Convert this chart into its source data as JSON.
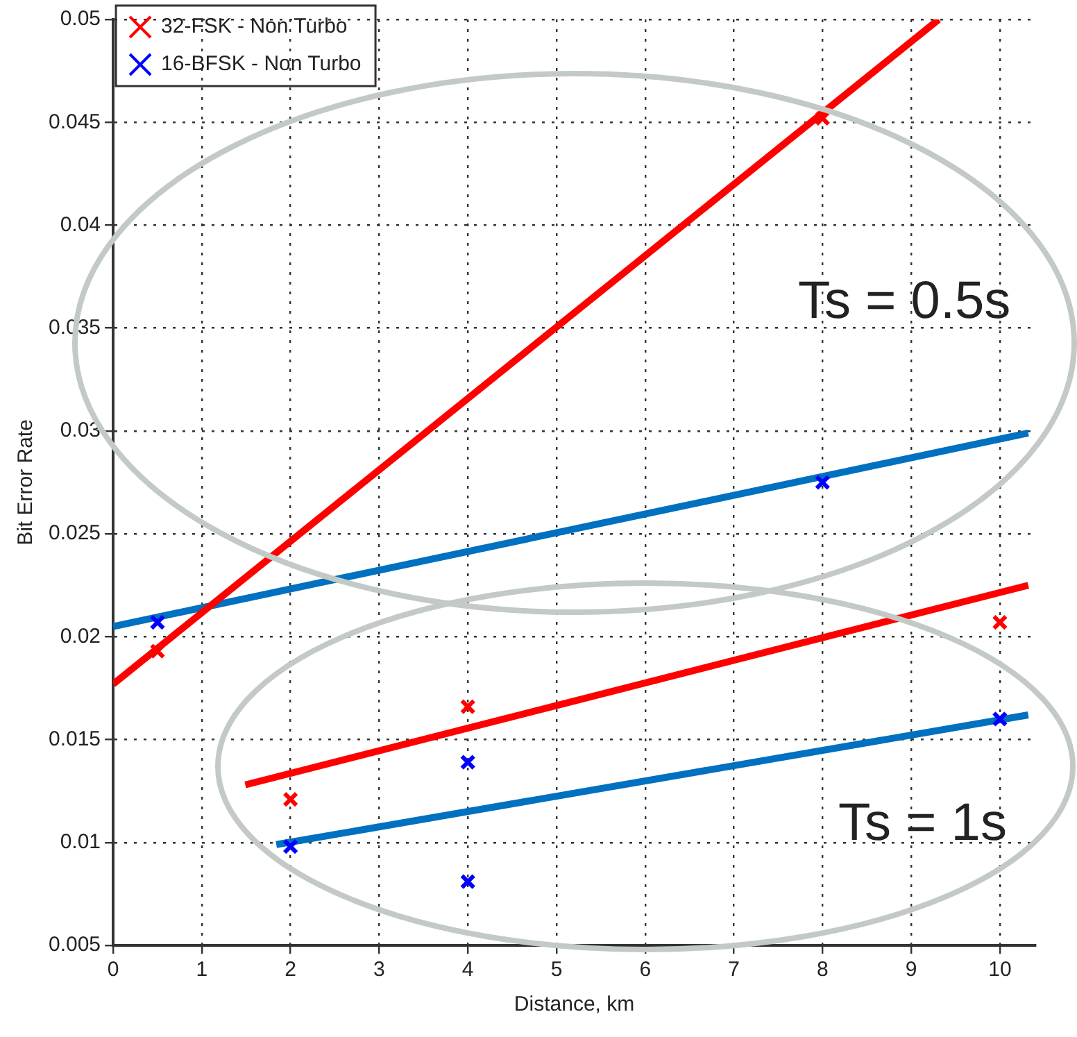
{
  "chart_data": {
    "type": "scatter",
    "xlabel": "Distance, km",
    "ylabel": "Bit Error Rate",
    "xlim": [
      0,
      10.4
    ],
    "xticks": [
      0,
      1,
      2,
      3,
      4,
      5,
      6,
      7,
      8,
      9,
      10
    ],
    "ylim": [
      0.005,
      0.05
    ],
    "yticks": [
      0.005,
      0.01,
      0.015,
      0.02,
      0.025,
      0.03,
      0.035,
      0.04,
      0.045,
      0.05
    ],
    "grid": true,
    "legend": "top left",
    "marker": "cross",
    "annotations": [
      "Ts = 0.5s",
      "Ts = 1s"
    ],
    "series": [
      {
        "name": "32-FSK - Non Turbo",
        "color": "#ff0000",
        "x": [
          0.5,
          8,
          2,
          4,
          10
        ],
        "values": [
          0.0193,
          0.0452,
          0.0121,
          0.0166,
          0.0207
        ]
      },
      {
        "name": "16-BFSK - Non Turbo",
        "color": "#0000ff",
        "x": [
          0.5,
          8,
          2,
          4,
          4,
          10
        ],
        "values": [
          0.0207,
          0.0275,
          0.0098,
          0.0139,
          0.0081,
          0.016
        ]
      },
      {
        "type": "line",
        "marker": "none",
        "color": "#ff0000",
        "x": [
          0,
          9.31
        ],
        "values": [
          0.0177,
          0.05
        ]
      },
      {
        "type": "line",
        "marker": "none",
        "color": "#0070c0",
        "x": [
          0,
          10.32
        ],
        "values": [
          0.0205,
          0.0299
        ]
      },
      {
        "type": "line",
        "marker": "none",
        "color": "#ff0000",
        "x": [
          1.49,
          10.32
        ],
        "values": [
          0.0128,
          0.0225
        ]
      },
      {
        "type": "line",
        "marker": "none",
        "color": "#0070c0",
        "x": [
          1.84,
          10.32
        ],
        "values": [
          0.0099,
          0.0162
        ]
      }
    ]
  }
}
